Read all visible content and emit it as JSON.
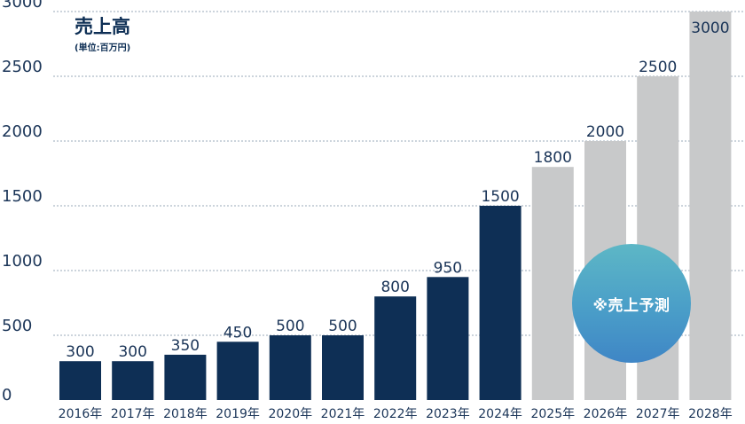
{
  "chart_data": {
    "type": "bar",
    "title": "売上高",
    "subtitle": "(単位:百万円)",
    "categories": [
      "2016年",
      "2017年",
      "2018年",
      "2019年",
      "2020年",
      "2021年",
      "2022年",
      "2023年",
      "2024年",
      "2025年",
      "2026年",
      "2027年",
      "2028年"
    ],
    "values": [
      300,
      300,
      350,
      450,
      500,
      500,
      800,
      950,
      1500,
      1800,
      2000,
      2500,
      3000
    ],
    "value_labels": [
      "300",
      "300",
      "350",
      "450",
      "500",
      "500",
      "800",
      "950",
      "1500",
      "1800",
      "2000",
      "2500",
      "3000"
    ],
    "forecast_from_index": 9,
    "forecast_label": "※売上予測",
    "ylim": [
      0,
      3000
    ],
    "yticks": [
      0,
      500,
      1000,
      1500,
      2000,
      2500,
      3000
    ],
    "ytick_labels": [
      "0",
      "500",
      "1000",
      "1500",
      "2000",
      "2500",
      "3000"
    ],
    "grid": true,
    "colors": {
      "actual": "#0e2f55",
      "forecast": "#c8c9ca",
      "grid": "#9aa8b8",
      "text": "#1b3558"
    }
  }
}
